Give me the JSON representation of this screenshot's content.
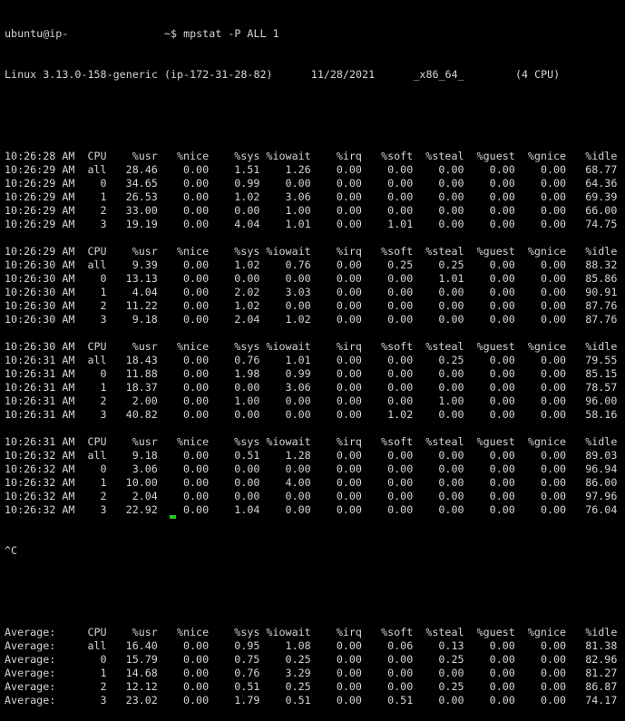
{
  "terminal": {
    "prompt_user": "ubuntu@ip-",
    "prompt_redacted": "               ",
    "prompt_suffix": "~$ ",
    "command": "mpstat -P ALL 1",
    "system_info": {
      "kernel": "Linux 3.13.0-158-generic",
      "host": "(ip-172-31-28-82)",
      "date": "11/28/2021",
      "arch": "_x86_64_",
      "cpus": "(4 CPU)"
    },
    "columns": [
      "CPU",
      "%usr",
      "%nice",
      "%sys",
      "%iowait",
      "%irq",
      "%soft",
      "%steal",
      "%guest",
      "%gnice",
      "%idle"
    ],
    "blocks": [
      {
        "header_time": "10:26:28 AM",
        "rows": [
          {
            "time": "10:26:29 AM",
            "cpu": "all",
            "values": [
              "28.46",
              "0.00",
              "1.51",
              "1.26",
              "0.00",
              "0.00",
              "0.00",
              "0.00",
              "0.00",
              "68.77"
            ]
          },
          {
            "time": "10:26:29 AM",
            "cpu": "0",
            "values": [
              "34.65",
              "0.00",
              "0.99",
              "0.00",
              "0.00",
              "0.00",
              "0.00",
              "0.00",
              "0.00",
              "64.36"
            ]
          },
          {
            "time": "10:26:29 AM",
            "cpu": "1",
            "values": [
              "26.53",
              "0.00",
              "1.02",
              "3.06",
              "0.00",
              "0.00",
              "0.00",
              "0.00",
              "0.00",
              "69.39"
            ]
          },
          {
            "time": "10:26:29 AM",
            "cpu": "2",
            "values": [
              "33.00",
              "0.00",
              "0.00",
              "1.00",
              "0.00",
              "0.00",
              "0.00",
              "0.00",
              "0.00",
              "66.00"
            ]
          },
          {
            "time": "10:26:29 AM",
            "cpu": "3",
            "values": [
              "19.19",
              "0.00",
              "4.04",
              "1.01",
              "0.00",
              "1.01",
              "0.00",
              "0.00",
              "0.00",
              "74.75"
            ]
          }
        ]
      },
      {
        "header_time": "10:26:29 AM",
        "rows": [
          {
            "time": "10:26:30 AM",
            "cpu": "all",
            "values": [
              "9.39",
              "0.00",
              "1.02",
              "0.76",
              "0.00",
              "0.25",
              "0.25",
              "0.00",
              "0.00",
              "88.32"
            ]
          },
          {
            "time": "10:26:30 AM",
            "cpu": "0",
            "values": [
              "13.13",
              "0.00",
              "0.00",
              "0.00",
              "0.00",
              "0.00",
              "1.01",
              "0.00",
              "0.00",
              "85.86"
            ]
          },
          {
            "time": "10:26:30 AM",
            "cpu": "1",
            "values": [
              "4.04",
              "0.00",
              "2.02",
              "3.03",
              "0.00",
              "0.00",
              "0.00",
              "0.00",
              "0.00",
              "90.91"
            ]
          },
          {
            "time": "10:26:30 AM",
            "cpu": "2",
            "values": [
              "11.22",
              "0.00",
              "1.02",
              "0.00",
              "0.00",
              "0.00",
              "0.00",
              "0.00",
              "0.00",
              "87.76"
            ]
          },
          {
            "time": "10:26:30 AM",
            "cpu": "3",
            "values": [
              "9.18",
              "0.00",
              "2.04",
              "1.02",
              "0.00",
              "0.00",
              "0.00",
              "0.00",
              "0.00",
              "87.76"
            ]
          }
        ]
      },
      {
        "header_time": "10:26:30 AM",
        "rows": [
          {
            "time": "10:26:31 AM",
            "cpu": "all",
            "values": [
              "18.43",
              "0.00",
              "0.76",
              "1.01",
              "0.00",
              "0.00",
              "0.25",
              "0.00",
              "0.00",
              "79.55"
            ]
          },
          {
            "time": "10:26:31 AM",
            "cpu": "0",
            "values": [
              "11.88",
              "0.00",
              "1.98",
              "0.99",
              "0.00",
              "0.00",
              "0.00",
              "0.00",
              "0.00",
              "85.15"
            ]
          },
          {
            "time": "10:26:31 AM",
            "cpu": "1",
            "values": [
              "18.37",
              "0.00",
              "0.00",
              "3.06",
              "0.00",
              "0.00",
              "0.00",
              "0.00",
              "0.00",
              "78.57"
            ]
          },
          {
            "time": "10:26:31 AM",
            "cpu": "2",
            "values": [
              "2.00",
              "0.00",
              "1.00",
              "0.00",
              "0.00",
              "0.00",
              "1.00",
              "0.00",
              "0.00",
              "96.00"
            ]
          },
          {
            "time": "10:26:31 AM",
            "cpu": "3",
            "values": [
              "40.82",
              "0.00",
              "0.00",
              "0.00",
              "0.00",
              "1.02",
              "0.00",
              "0.00",
              "0.00",
              "58.16"
            ]
          }
        ]
      },
      {
        "header_time": "10:26:31 AM",
        "rows": [
          {
            "time": "10:26:32 AM",
            "cpu": "all",
            "values": [
              "9.18",
              "0.00",
              "0.51",
              "1.28",
              "0.00",
              "0.00",
              "0.00",
              "0.00",
              "0.00",
              "89.03"
            ]
          },
          {
            "time": "10:26:32 AM",
            "cpu": "0",
            "values": [
              "3.06",
              "0.00",
              "0.00",
              "0.00",
              "0.00",
              "0.00",
              "0.00",
              "0.00",
              "0.00",
              "96.94"
            ]
          },
          {
            "time": "10:26:32 AM",
            "cpu": "1",
            "values": [
              "10.00",
              "0.00",
              "0.00",
              "4.00",
              "0.00",
              "0.00",
              "0.00",
              "0.00",
              "0.00",
              "86.00"
            ]
          },
          {
            "time": "10:26:32 AM",
            "cpu": "2",
            "values": [
              "2.04",
              "0.00",
              "0.00",
              "0.00",
              "0.00",
              "0.00",
              "0.00",
              "0.00",
              "0.00",
              "97.96"
            ]
          },
          {
            "time": "10:26:32 AM",
            "cpu": "3",
            "values": [
              "22.92",
              "0.00",
              "1.04",
              "0.00",
              "0.00",
              "0.00",
              "0.00",
              "0.00",
              "0.00",
              "76.04"
            ]
          }
        ]
      }
    ],
    "interrupt": "^C",
    "average": {
      "header_time": "Average:",
      "rows": [
        {
          "time": "Average:",
          "cpu": "all",
          "values": [
            "16.40",
            "0.00",
            "0.95",
            "1.08",
            "0.00",
            "0.06",
            "0.13",
            "0.00",
            "0.00",
            "81.38"
          ]
        },
        {
          "time": "Average:",
          "cpu": "0",
          "values": [
            "15.79",
            "0.00",
            "0.75",
            "0.25",
            "0.00",
            "0.00",
            "0.25",
            "0.00",
            "0.00",
            "82.96"
          ]
        },
        {
          "time": "Average:",
          "cpu": "1",
          "values": [
            "14.68",
            "0.00",
            "0.76",
            "3.29",
            "0.00",
            "0.00",
            "0.00",
            "0.00",
            "0.00",
            "81.27"
          ]
        },
        {
          "time": "Average:",
          "cpu": "2",
          "values": [
            "12.12",
            "0.00",
            "0.51",
            "0.25",
            "0.00",
            "0.00",
            "0.25",
            "0.00",
            "0.00",
            "86.87"
          ]
        },
        {
          "time": "Average:",
          "cpu": "3",
          "values": [
            "23.02",
            "0.00",
            "1.79",
            "0.51",
            "0.00",
            "0.51",
            "0.00",
            "0.00",
            "0.00",
            "74.17"
          ]
        }
      ]
    },
    "colors": {
      "background": "#000000",
      "text": "#d4d4d4",
      "cursor": "#22cc22"
    }
  }
}
